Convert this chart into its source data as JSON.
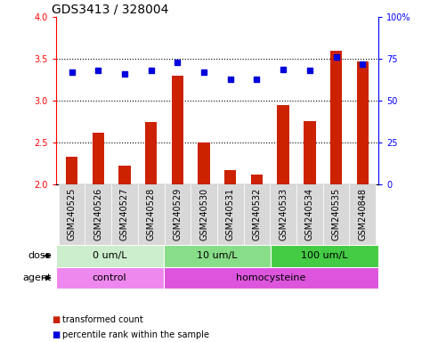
{
  "title": "GDS3413 / 328004",
  "samples": [
    "GSM240525",
    "GSM240526",
    "GSM240527",
    "GSM240528",
    "GSM240529",
    "GSM240530",
    "GSM240531",
    "GSM240532",
    "GSM240533",
    "GSM240534",
    "GSM240535",
    "GSM240848"
  ],
  "transformed_count": [
    2.33,
    2.62,
    2.23,
    2.75,
    3.3,
    2.5,
    2.17,
    2.12,
    2.95,
    2.76,
    3.6,
    3.47
  ],
  "percentile_rank": [
    67,
    68,
    66,
    68,
    73,
    67,
    63,
    63,
    69,
    68,
    76,
    72
  ],
  "bar_color": "#cc2200",
  "dot_color": "#0000dd",
  "ylim_left": [
    2.0,
    4.0
  ],
  "ylim_right": [
    0,
    100
  ],
  "yticks_left": [
    2.0,
    2.5,
    3.0,
    3.5,
    4.0
  ],
  "yticks_right": [
    0,
    25,
    50,
    75,
    100
  ],
  "ytick_labels_right": [
    "0",
    "25",
    "50",
    "75",
    "100%"
  ],
  "dose_groups": [
    {
      "label": "0 um/L",
      "start": 0,
      "end": 4,
      "color": "#cceecc"
    },
    {
      "label": "10 um/L",
      "start": 4,
      "end": 8,
      "color": "#88dd88"
    },
    {
      "label": "100 um/L",
      "start": 8,
      "end": 12,
      "color": "#44cc44"
    }
  ],
  "agent_groups": [
    {
      "label": "control",
      "start": 0,
      "end": 4,
      "color": "#ee88ee"
    },
    {
      "label": "homocysteine",
      "start": 4,
      "end": 12,
      "color": "#dd55dd"
    }
  ],
  "dose_label": "dose",
  "agent_label": "agent",
  "legend_bar_label": "transformed count",
  "legend_dot_label": "percentile rank within the sample",
  "plot_bg_color": "#ffffff",
  "tick_area_color": "#d8d8d8",
  "title_fontsize": 10,
  "tick_fontsize": 7,
  "label_fontsize": 8,
  "row_fontsize": 8
}
